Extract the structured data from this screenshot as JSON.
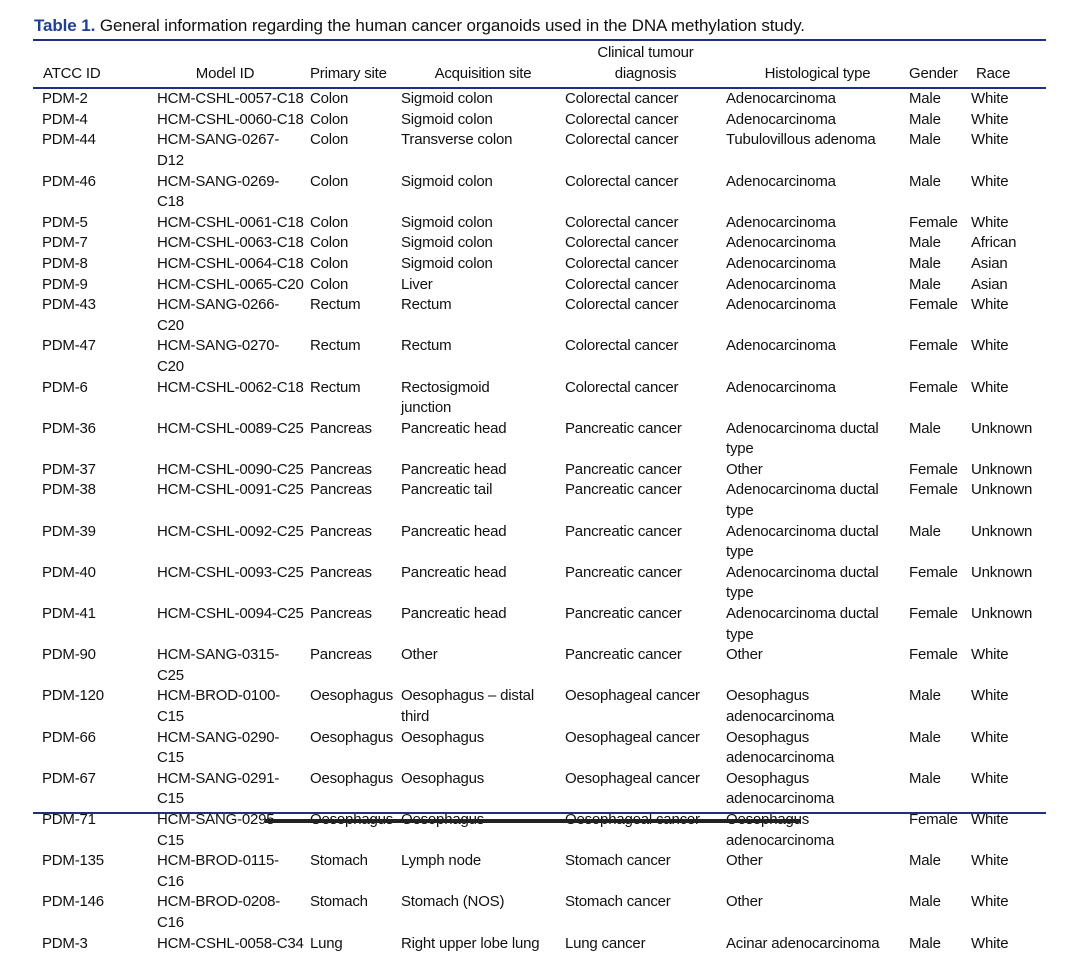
{
  "title": {
    "label": "Table 1.",
    "text": "General information regarding the human cancer organoids used in the DNA methylation study."
  },
  "colors": {
    "title_label": "#1f3f95",
    "rules": "#1f2f80"
  },
  "columns": [
    "ATCC ID",
    "Model ID",
    "Primary site",
    "Acquisition site",
    "Clinical tumour\ndiagnosis",
    "Histological type",
    "Gender",
    "Race"
  ],
  "rows": [
    [
      "PDM-2",
      "HCM-CSHL-0057-C18",
      "Colon",
      "Sigmoid colon",
      "Colorectal cancer",
      "Adenocarcinoma",
      "Male",
      "White"
    ],
    [
      "PDM-4",
      "HCM-CSHL-0060-C18",
      "Colon",
      "Sigmoid colon",
      "Colorectal cancer",
      "Adenocarcinoma",
      "Male",
      "White"
    ],
    [
      "PDM-44",
      "HCM-SANG-0267-D12",
      "Colon",
      "Transverse colon",
      "Colorectal cancer",
      "Tubulovillous adenoma",
      "Male",
      "White"
    ],
    [
      "PDM-46",
      "HCM-SANG-0269-C18",
      "Colon",
      "Sigmoid colon",
      "Colorectal cancer",
      "Adenocarcinoma",
      "Male",
      "White"
    ],
    [
      "PDM-5",
      "HCM-CSHL-0061-C18",
      "Colon",
      "Sigmoid colon",
      "Colorectal cancer",
      "Adenocarcinoma",
      "Female",
      "White"
    ],
    [
      "PDM-7",
      "HCM-CSHL-0063-C18",
      "Colon",
      "Sigmoid colon",
      "Colorectal cancer",
      "Adenocarcinoma",
      "Male",
      "African"
    ],
    [
      "PDM-8",
      "HCM-CSHL-0064-C18",
      "Colon",
      "Sigmoid colon",
      "Colorectal cancer",
      "Adenocarcinoma",
      "Male",
      "Asian"
    ],
    [
      "PDM-9",
      "HCM-CSHL-0065-C20",
      "Colon",
      "Liver",
      "Colorectal cancer",
      "Adenocarcinoma",
      "Male",
      "Asian"
    ],
    [
      "PDM-43",
      "HCM-SANG-0266-C20",
      "Rectum",
      "Rectum",
      "Colorectal cancer",
      "Adenocarcinoma",
      "Female",
      "White"
    ],
    [
      "PDM-47",
      "HCM-SANG-0270-C20",
      "Rectum",
      "Rectum",
      "Colorectal cancer",
      "Adenocarcinoma",
      "Female",
      "White"
    ],
    [
      "PDM-6",
      "HCM-CSHL-0062-C18",
      "Rectum",
      "Rectosigmoid\njunction",
      "Colorectal cancer",
      "Adenocarcinoma",
      "Female",
      "White"
    ],
    [
      "PDM-36",
      "HCM-CSHL-0089-C25",
      "Pancreas",
      "Pancreatic head",
      "Pancreatic cancer",
      "Adenocarcinoma ductal\ntype",
      "Male",
      "Unknown"
    ],
    [
      "PDM-37",
      "HCM-CSHL-0090-C25",
      "Pancreas",
      "Pancreatic head",
      "Pancreatic cancer",
      "Other",
      "Female",
      "Unknown"
    ],
    [
      "PDM-38",
      "HCM-CSHL-0091-C25",
      "Pancreas",
      "Pancreatic tail",
      "Pancreatic cancer",
      "Adenocarcinoma ductal\ntype",
      "Female",
      "Unknown"
    ],
    [
      "PDM-39",
      "HCM-CSHL-0092-C25",
      "Pancreas",
      "Pancreatic head",
      "Pancreatic cancer",
      "Adenocarcinoma ductal\ntype",
      "Male",
      "Unknown"
    ],
    [
      "PDM-40",
      "HCM-CSHL-0093-C25",
      "Pancreas",
      "Pancreatic head",
      "Pancreatic cancer",
      "Adenocarcinoma ductal\ntype",
      "Female",
      "Unknown"
    ],
    [
      "PDM-41",
      "HCM-CSHL-0094-C25",
      "Pancreas",
      "Pancreatic head",
      "Pancreatic cancer",
      "Adenocarcinoma ductal\ntype",
      "Female",
      "Unknown"
    ],
    [
      "PDM-90",
      "HCM-SANG-0315-C25",
      "Pancreas",
      "Other",
      "Pancreatic cancer",
      "Other",
      "Female",
      "White"
    ],
    [
      "PDM-120",
      "HCM-BROD-0100-C15",
      "Oesophagus",
      "Oesophagus – distal\nthird",
      "Oesophageal cancer",
      "Oesophagus\nadenocarcinoma",
      "Male",
      "White"
    ],
    [
      "PDM-66",
      "HCM-SANG-0290-C15",
      "Oesophagus",
      "Oesophagus",
      "Oesophageal cancer",
      "Oesophagus\nadenocarcinoma",
      "Male",
      "White"
    ],
    [
      "PDM-67",
      "HCM-SANG-0291-C15",
      "Oesophagus",
      "Oesophagus",
      "Oesophageal cancer",
      "Oesophagus\nadenocarcinoma",
      "Male",
      "White"
    ],
    [
      "PDM-71",
      "HCM-SANG-0295-C15",
      "Oesophagus",
      "Oesophagus",
      "Oesophageal cancer",
      "Oesophagus\nadenocarcinoma",
      "Female",
      "White"
    ],
    [
      "PDM-135",
      "HCM-BROD-0115-C16",
      "Stomach",
      "Lymph node",
      "Stomach cancer",
      "Other",
      "Male",
      "White"
    ],
    [
      "PDM-146",
      "HCM-BROD-0208-C16",
      "Stomach",
      "Stomach (NOS)",
      "Stomach cancer",
      "Other",
      "Male",
      "White"
    ],
    [
      "PDM-3",
      "HCM-CSHL-0058-C34",
      "Lung",
      "Right upper lobe lung",
      "Lung cancer",
      "Acinar adenocarcinoma",
      "Male",
      "White"
    ]
  ]
}
